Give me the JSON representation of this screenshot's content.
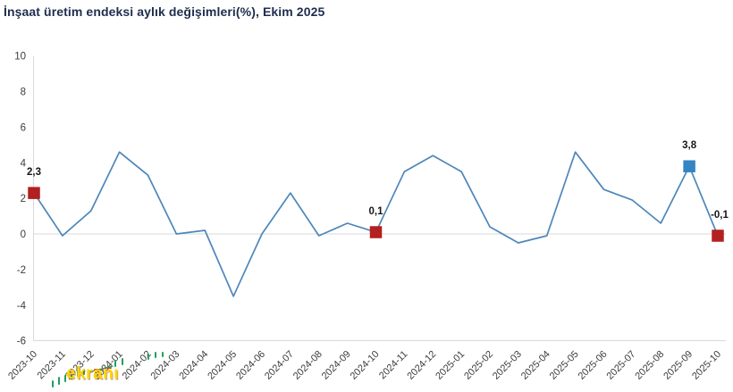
{
  "title": "İnşaat üretim endeksi aylık değişimleri(%), Ekim 2025",
  "watermark": {
    "text": "ekranı"
  },
  "colors": {
    "title": "#1f2d4d",
    "line": "#4e86ba",
    "marker_red": "#b2201f",
    "marker_blue": "#3585c5",
    "grid": "#d9d9d9",
    "axis_text": "#3c3c3c",
    "annotation_text": "#161616",
    "background": "#ffffff",
    "watermark_yellow": "#ffd402",
    "watermark_green": "#1fa05c",
    "watermark_red": "#e2403a"
  },
  "chart_data": {
    "type": "line",
    "title": "İnşaat üretim endeksi aylık değişimleri(%), Ekim 2025",
    "xlabel": "",
    "ylabel": "",
    "ylim": [
      -6,
      10
    ],
    "ytick_step": 2,
    "grid": "zero-line-only",
    "legend": "none",
    "categories": [
      "2023-10",
      "2023-11",
      "2023-12",
      "2024-01",
      "2024-02",
      "2024-03",
      "2024-04",
      "2024-05",
      "2024-06",
      "2024-07",
      "2024-08",
      "2024-09",
      "2024-10",
      "2024-11",
      "2024-12",
      "2025-01",
      "2025-02",
      "2025-03",
      "2025-04",
      "2025-05",
      "2025-06",
      "2025-07",
      "2025-08",
      "2025-09",
      "2025-10"
    ],
    "values": [
      2.3,
      -0.1,
      1.3,
      4.6,
      3.3,
      0.0,
      0.2,
      -3.5,
      0.0,
      2.3,
      -0.1,
      0.6,
      0.1,
      3.5,
      4.4,
      3.5,
      0.4,
      -0.5,
      -0.1,
      4.6,
      2.5,
      1.9,
      0.6,
      3.8,
      -0.1
    ],
    "annotations": [
      {
        "index": 0,
        "category": "2023-10",
        "value": 2.3,
        "label": "2,3",
        "marker": "square",
        "color": "#b2201f"
      },
      {
        "index": 12,
        "category": "2024-10",
        "value": 0.1,
        "label": "0,1",
        "marker": "square",
        "color": "#b2201f"
      },
      {
        "index": 23,
        "category": "2025-09",
        "value": 3.8,
        "label": "3,8",
        "marker": "square",
        "color": "#3585c5"
      },
      {
        "index": 24,
        "category": "2025-10",
        "value": -0.1,
        "label": "-0,1",
        "marker": "square",
        "color": "#b2201f"
      }
    ]
  }
}
